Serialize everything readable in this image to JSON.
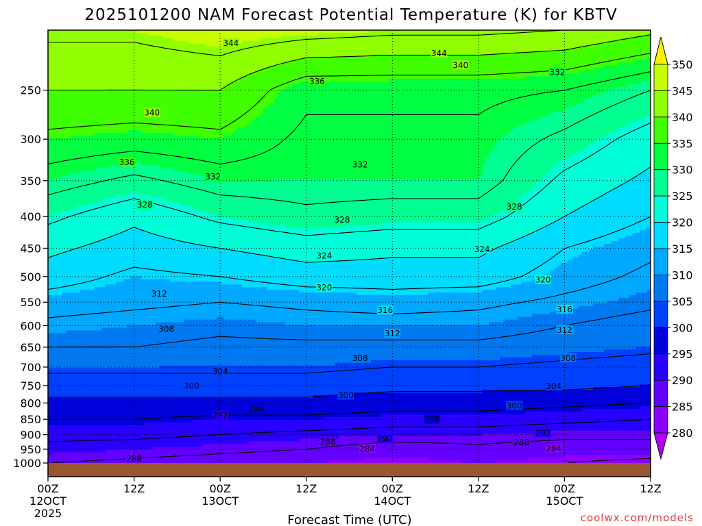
{
  "title": "2025101200 NAM Forecast Potential Temperature (K) for KBTV",
  "credit": "coolwx.com/models",
  "chart_data": {
    "type": "heatmap",
    "title": "2025101200 NAM Forecast Potential Temperature (K) for KBTV",
    "xlabel": "Forecast Time (UTC)",
    "ylabel": "",
    "y_scale": "log-pressure",
    "grid": true,
    "x_range_hours": [
      0,
      84
    ],
    "y_range_hPa": [
      200,
      1000
    ],
    "x_ticks": [
      {
        "hour": 0,
        "label": "00Z",
        "sub1": "12OCT",
        "sub2": "2025"
      },
      {
        "hour": 12,
        "label": "12Z",
        "sub1": "",
        "sub2": ""
      },
      {
        "hour": 24,
        "label": "00Z",
        "sub1": "13OCT",
        "sub2": ""
      },
      {
        "hour": 36,
        "label": "12Z",
        "sub1": "",
        "sub2": ""
      },
      {
        "hour": 48,
        "label": "00Z",
        "sub1": "14OCT",
        "sub2": ""
      },
      {
        "hour": 60,
        "label": "12Z",
        "sub1": "",
        "sub2": ""
      },
      {
        "hour": 72,
        "label": "00Z",
        "sub1": "15OCT",
        "sub2": ""
      },
      {
        "hour": 84,
        "label": "12Z",
        "sub1": "",
        "sub2": ""
      }
    ],
    "y_ticks": [
      250,
      300,
      350,
      400,
      450,
      500,
      550,
      600,
      650,
      700,
      750,
      800,
      850,
      900,
      950,
      1000
    ],
    "colorbar": {
      "min": 280,
      "max": 350,
      "step": 5,
      "labels": [
        350,
        345,
        340,
        335,
        330,
        325,
        320,
        315,
        310,
        305,
        300,
        295,
        290,
        285,
        280
      ],
      "colors": [
        "#b400ff",
        "#8c00ff",
        "#6400ff",
        "#2800ff",
        "#0000dc",
        "#0040ff",
        "#0078f0",
        "#00a8ff",
        "#00dcff",
        "#00ffd8",
        "#00ff90",
        "#00ff40",
        "#40ff00",
        "#90ff00",
        "#c8ff00",
        "#fff000"
      ]
    },
    "contour_interval": 4,
    "contour_labels": [
      {
        "value": 344,
        "hour": 25.5,
        "p": 210
      },
      {
        "value": 344,
        "hour": 54.5,
        "p": 218
      },
      {
        "value": 340,
        "hour": 57.5,
        "p": 228
      },
      {
        "value": 340,
        "hour": 14.5,
        "p": 272
      },
      {
        "value": 336,
        "hour": 37.5,
        "p": 242
      },
      {
        "value": 332,
        "hour": 71.0,
        "p": 234
      },
      {
        "value": 336,
        "hour": 11.0,
        "p": 327
      },
      {
        "value": 332,
        "hour": 23.0,
        "p": 345
      },
      {
        "value": 332,
        "hour": 43.5,
        "p": 330
      },
      {
        "value": 328,
        "hour": 13.5,
        "p": 383
      },
      {
        "value": 328,
        "hour": 41.0,
        "p": 405
      },
      {
        "value": 328,
        "hour": 65.0,
        "p": 386
      },
      {
        "value": 324,
        "hour": 38.5,
        "p": 463
      },
      {
        "value": 324,
        "hour": 60.5,
        "p": 452
      },
      {
        "value": 320,
        "hour": 38.5,
        "p": 521
      },
      {
        "value": 320,
        "hour": 69.0,
        "p": 506
      },
      {
        "value": 316,
        "hour": 47.0,
        "p": 567
      },
      {
        "value": 316,
        "hour": 72.0,
        "p": 565
      },
      {
        "value": 312,
        "hour": 15.5,
        "p": 533
      },
      {
        "value": 312,
        "hour": 48.0,
        "p": 618
      },
      {
        "value": 312,
        "hour": 72.0,
        "p": 610
      },
      {
        "value": 308,
        "hour": 16.5,
        "p": 608
      },
      {
        "value": 308,
        "hour": 43.5,
        "p": 677
      },
      {
        "value": 308,
        "hour": 72.5,
        "p": 677
      },
      {
        "value": 304,
        "hour": 24.0,
        "p": 712
      },
      {
        "value": 304,
        "hour": 70.5,
        "p": 752
      },
      {
        "value": 300,
        "hour": 20.0,
        "p": 751
      },
      {
        "value": 300,
        "hour": 41.5,
        "p": 778
      },
      {
        "value": 300,
        "hour": 65.0,
        "p": 808
      },
      {
        "value": 296,
        "hour": 29.0,
        "p": 817
      },
      {
        "value": 296,
        "hour": 53.5,
        "p": 851
      },
      {
        "value": 292,
        "hour": 24.0,
        "p": 838
      },
      {
        "value": 292,
        "hour": 47.0,
        "p": 914
      },
      {
        "value": 292,
        "hour": 69.0,
        "p": 895
      },
      {
        "value": 288,
        "hour": 39.0,
        "p": 924
      },
      {
        "value": 288,
        "hour": 66.0,
        "p": 926
      },
      {
        "value": 288,
        "hour": 12.0,
        "p": 985
      },
      {
        "value": 284,
        "hour": 44.5,
        "p": 949
      },
      {
        "value": 284,
        "hour": 70.5,
        "p": 948
      }
    ],
    "theta_profiles": [
      {
        "hour": 0,
        "levels": [
          [
            1000,
            288
          ],
          [
            950,
            291
          ],
          [
            900,
            293
          ],
          [
            850,
            296
          ],
          [
            800,
            299
          ],
          [
            750,
            302
          ],
          [
            700,
            305
          ],
          [
            650,
            308
          ],
          [
            600,
            311
          ],
          [
            550,
            314
          ],
          [
            500,
            318
          ],
          [
            450,
            321
          ],
          [
            400,
            325
          ],
          [
            350,
            330
          ],
          [
            300,
            335
          ],
          [
            250,
            340
          ],
          [
            200,
            345
          ]
        ]
      },
      {
        "hour": 12,
        "levels": [
          [
            1000,
            287
          ],
          [
            950,
            290
          ],
          [
            900,
            293
          ],
          [
            850,
            296
          ],
          [
            800,
            299
          ],
          [
            750,
            302
          ],
          [
            700,
            305
          ],
          [
            650,
            308
          ],
          [
            600,
            310
          ],
          [
            550,
            313
          ],
          [
            500,
            315
          ],
          [
            450,
            318
          ],
          [
            400,
            321
          ],
          [
            350,
            327
          ],
          [
            300,
            334
          ],
          [
            250,
            340
          ],
          [
            200,
            345
          ]
        ]
      },
      {
        "hour": 24,
        "levels": [
          [
            1000,
            286
          ],
          [
            950,
            289
          ],
          [
            900,
            292
          ],
          [
            850,
            295
          ],
          [
            800,
            299
          ],
          [
            750,
            302
          ],
          [
            700,
            305
          ],
          [
            650,
            307
          ],
          [
            600,
            309
          ],
          [
            550,
            312
          ],
          [
            500,
            316
          ],
          [
            450,
            320
          ],
          [
            400,
            325
          ],
          [
            350,
            330
          ],
          [
            300,
            335
          ],
          [
            250,
            340
          ],
          [
            200,
            347
          ]
        ]
      },
      {
        "hour": 36,
        "levels": [
          [
            1000,
            285
          ],
          [
            950,
            288
          ],
          [
            900,
            291
          ],
          [
            850,
            295
          ],
          [
            800,
            299
          ],
          [
            750,
            302
          ],
          [
            700,
            305
          ],
          [
            650,
            307
          ],
          [
            600,
            310
          ],
          [
            550,
            313
          ],
          [
            500,
            318
          ],
          [
            450,
            322
          ],
          [
            400,
            327
          ],
          [
            350,
            330
          ],
          [
            300,
            331
          ],
          [
            250,
            333
          ],
          [
            200,
            346
          ]
        ]
      },
      {
        "hour": 48,
        "levels": [
          [
            1000,
            284
          ],
          [
            950,
            286
          ],
          [
            900,
            290
          ],
          [
            850,
            294
          ],
          [
            800,
            298
          ],
          [
            750,
            301
          ],
          [
            700,
            304
          ],
          [
            650,
            307
          ],
          [
            600,
            310
          ],
          [
            550,
            314
          ],
          [
            500,
            318
          ],
          [
            450,
            321
          ],
          [
            400,
            326
          ],
          [
            350,
            330
          ],
          [
            300,
            331
          ],
          [
            250,
            333
          ],
          [
            200,
            345
          ]
        ]
      },
      {
        "hour": 60,
        "levels": [
          [
            1000,
            285
          ],
          [
            950,
            287
          ],
          [
            900,
            290
          ],
          [
            850,
            294
          ],
          [
            800,
            298
          ],
          [
            750,
            301
          ],
          [
            700,
            304
          ],
          [
            650,
            307
          ],
          [
            600,
            310
          ],
          [
            550,
            313
          ],
          [
            500,
            318
          ],
          [
            450,
            321
          ],
          [
            400,
            326
          ],
          [
            350,
            330
          ],
          [
            300,
            331
          ],
          [
            250,
            333
          ],
          [
            200,
            345
          ]
        ]
      },
      {
        "hour": 72,
        "levels": [
          [
            1000,
            284
          ],
          [
            950,
            286
          ],
          [
            900,
            289
          ],
          [
            850,
            293
          ],
          [
            800,
            297
          ],
          [
            750,
            301
          ],
          [
            700,
            303
          ],
          [
            650,
            306
          ],
          [
            600,
            308
          ],
          [
            550,
            311
          ],
          [
            500,
            314
          ],
          [
            450,
            316
          ],
          [
            400,
            320
          ],
          [
            350,
            323
          ],
          [
            300,
            327
          ],
          [
            250,
            332
          ],
          [
            200,
            344
          ]
        ]
      },
      {
        "hour": 84,
        "levels": [
          [
            1000,
            283
          ],
          [
            950,
            286
          ],
          [
            900,
            289
          ],
          [
            850,
            292
          ],
          [
            800,
            296
          ],
          [
            750,
            300
          ],
          [
            700,
            302
          ],
          [
            650,
            305
          ],
          [
            600,
            306
          ],
          [
            550,
            309
          ],
          [
            500,
            311
          ],
          [
            450,
            313
          ],
          [
            400,
            316
          ],
          [
            350,
            319
          ],
          [
            300,
            322
          ],
          [
            250,
            328
          ],
          [
            200,
            341
          ]
        ]
      }
    ]
  }
}
